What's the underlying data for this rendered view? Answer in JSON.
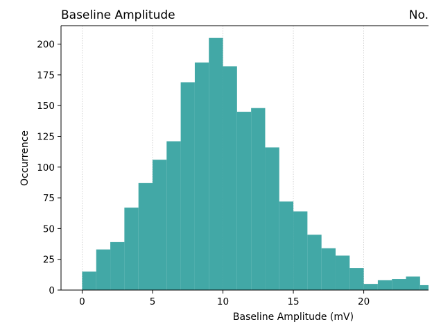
{
  "header": {
    "title": "Baseline Amplitude",
    "right_label": "No."
  },
  "chart_data": {
    "type": "bar",
    "subtype": "histogram",
    "title": "Baseline Amplitude",
    "xlabel": "Baseline Amplitude (mV)",
    "ylabel": "Occurrence",
    "bin_width": 1,
    "bin_start": 0,
    "values": [
      15,
      33,
      39,
      67,
      87,
      106,
      121,
      169,
      185,
      205,
      182,
      145,
      148,
      116,
      72,
      64,
      45,
      34,
      28,
      18,
      5,
      8,
      9,
      11,
      4
    ],
    "xlim": [
      -1.5,
      24.6
    ],
    "ylim": [
      0,
      215
    ],
    "x_ticks": [
      0,
      5,
      10,
      15,
      20
    ],
    "y_ticks": [
      0,
      25,
      50,
      75,
      100,
      125,
      150,
      175,
      200
    ],
    "grid": "vertical dotted",
    "color": "#42a8a6"
  }
}
